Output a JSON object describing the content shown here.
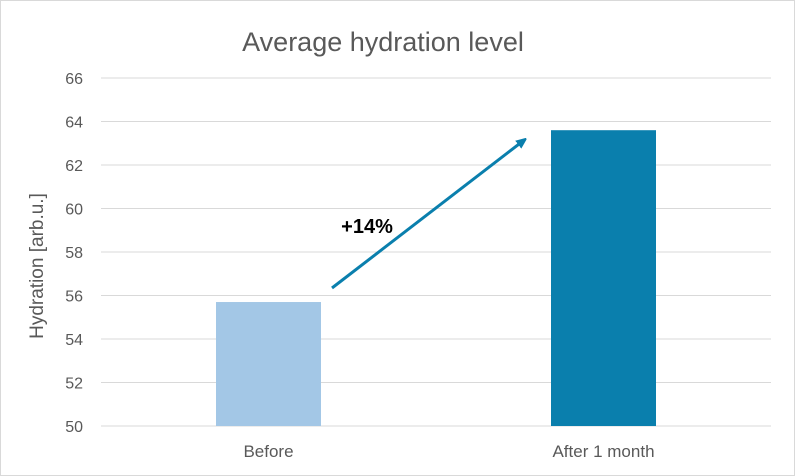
{
  "chart_data": {
    "type": "bar",
    "title": "Average hydration level",
    "xlabel": "",
    "ylabel": "Hydration [arb.u.]",
    "categories": [
      "Before",
      "After 1 month"
    ],
    "values": [
      55.7,
      63.6
    ],
    "ylim": [
      50,
      66
    ],
    "yticks": [
      "50",
      "52",
      "54",
      "56",
      "58",
      "60",
      "62",
      "64",
      "66"
    ],
    "bar_colors": [
      "#a3c7e6",
      "#0a7fad"
    ],
    "grid": true,
    "legend": "none",
    "annotation": {
      "text": "+14%",
      "arrow_color": "#0a7fad"
    }
  }
}
